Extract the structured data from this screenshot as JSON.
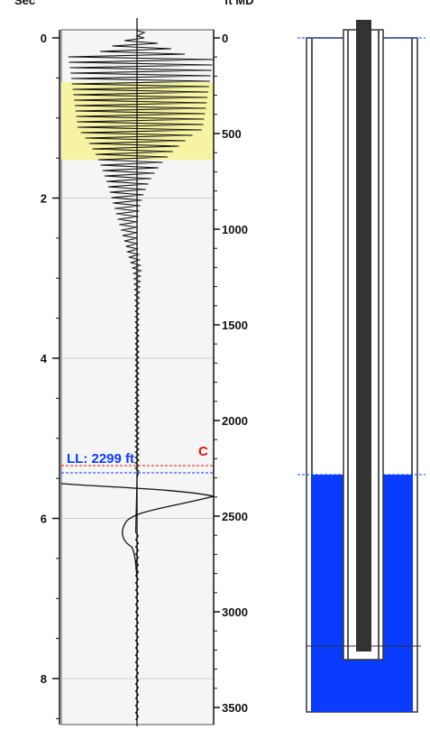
{
  "header": {
    "left_label": "Sec",
    "right_label": "ft MD"
  },
  "time_axis": {
    "ticks": [
      "0",
      "2",
      "4",
      "6",
      "8"
    ],
    "unit": "Sec"
  },
  "depth_axis": {
    "ticks": [
      "0",
      "500",
      "1000",
      "1500",
      "2000",
      "2500",
      "3000",
      "3500"
    ],
    "unit": "ft MD"
  },
  "liquid_level": {
    "label": "LL: 2299 ft",
    "depth_ft": 2299,
    "marker": "C",
    "label_color": "#0a3cff",
    "marker_color": "#e4140d"
  },
  "colors": {
    "track_bg": "#f5f5f5",
    "highlight": "#f6f4a2",
    "fluid": "#0a3cff",
    "tubing": "#333333",
    "trace": "#111111"
  }
}
